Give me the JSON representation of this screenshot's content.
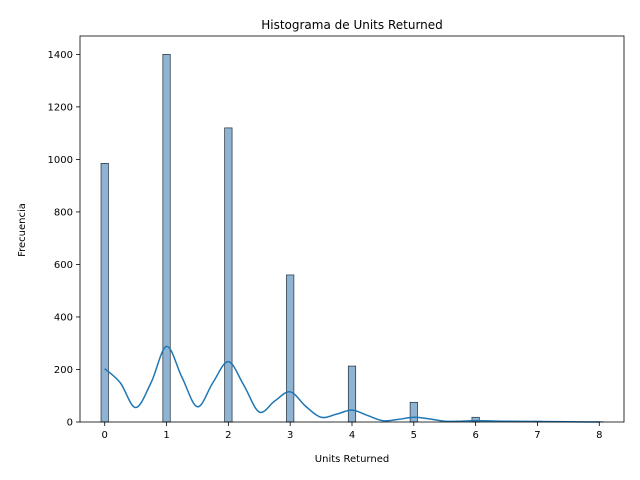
{
  "chart_data": {
    "type": "bar",
    "title": "Histograma de Units Returned",
    "xlabel": "Units Returned",
    "ylabel": "Frecuencia",
    "xlim": [
      -0.4,
      8.4
    ],
    "ylim": [
      0,
      1470
    ],
    "xticks": [
      "0",
      "1",
      "2",
      "3",
      "4",
      "5",
      "6",
      "7",
      "8"
    ],
    "yticks": [
      "0",
      "200",
      "400",
      "600",
      "800",
      "1000",
      "1200",
      "1400"
    ],
    "bins": [
      {
        "x": 0,
        "value": 985
      },
      {
        "x": 1,
        "value": 1400
      },
      {
        "x": 2,
        "value": 1120
      },
      {
        "x": 3,
        "value": 560
      },
      {
        "x": 4,
        "value": 213
      },
      {
        "x": 5,
        "value": 75
      },
      {
        "x": 6,
        "value": 18
      },
      {
        "x": 7,
        "value": 3
      },
      {
        "x": 8,
        "value": 1
      }
    ],
    "kde": {
      "x": [
        0,
        0.25,
        0.5,
        0.75,
        1,
        1.25,
        1.5,
        1.75,
        2,
        2.25,
        2.5,
        2.75,
        3,
        3.25,
        3.5,
        3.75,
        4,
        4.25,
        4.5,
        4.75,
        5,
        5.25,
        5.5,
        5.75,
        6,
        6.5,
        7,
        7.5,
        8
      ],
      "y": [
        203,
        150,
        55,
        150,
        288,
        170,
        58,
        150,
        230,
        140,
        38,
        80,
        115,
        60,
        18,
        30,
        45,
        25,
        5,
        10,
        18,
        12,
        3,
        3,
        5,
        3,
        2,
        1,
        0
      ]
    },
    "colors": {
      "bar_fill": "#8fb4d3",
      "bar_edge": "#1f2d3a",
      "kde_line": "#1f77b4"
    },
    "grid": false,
    "legend": "none"
  }
}
